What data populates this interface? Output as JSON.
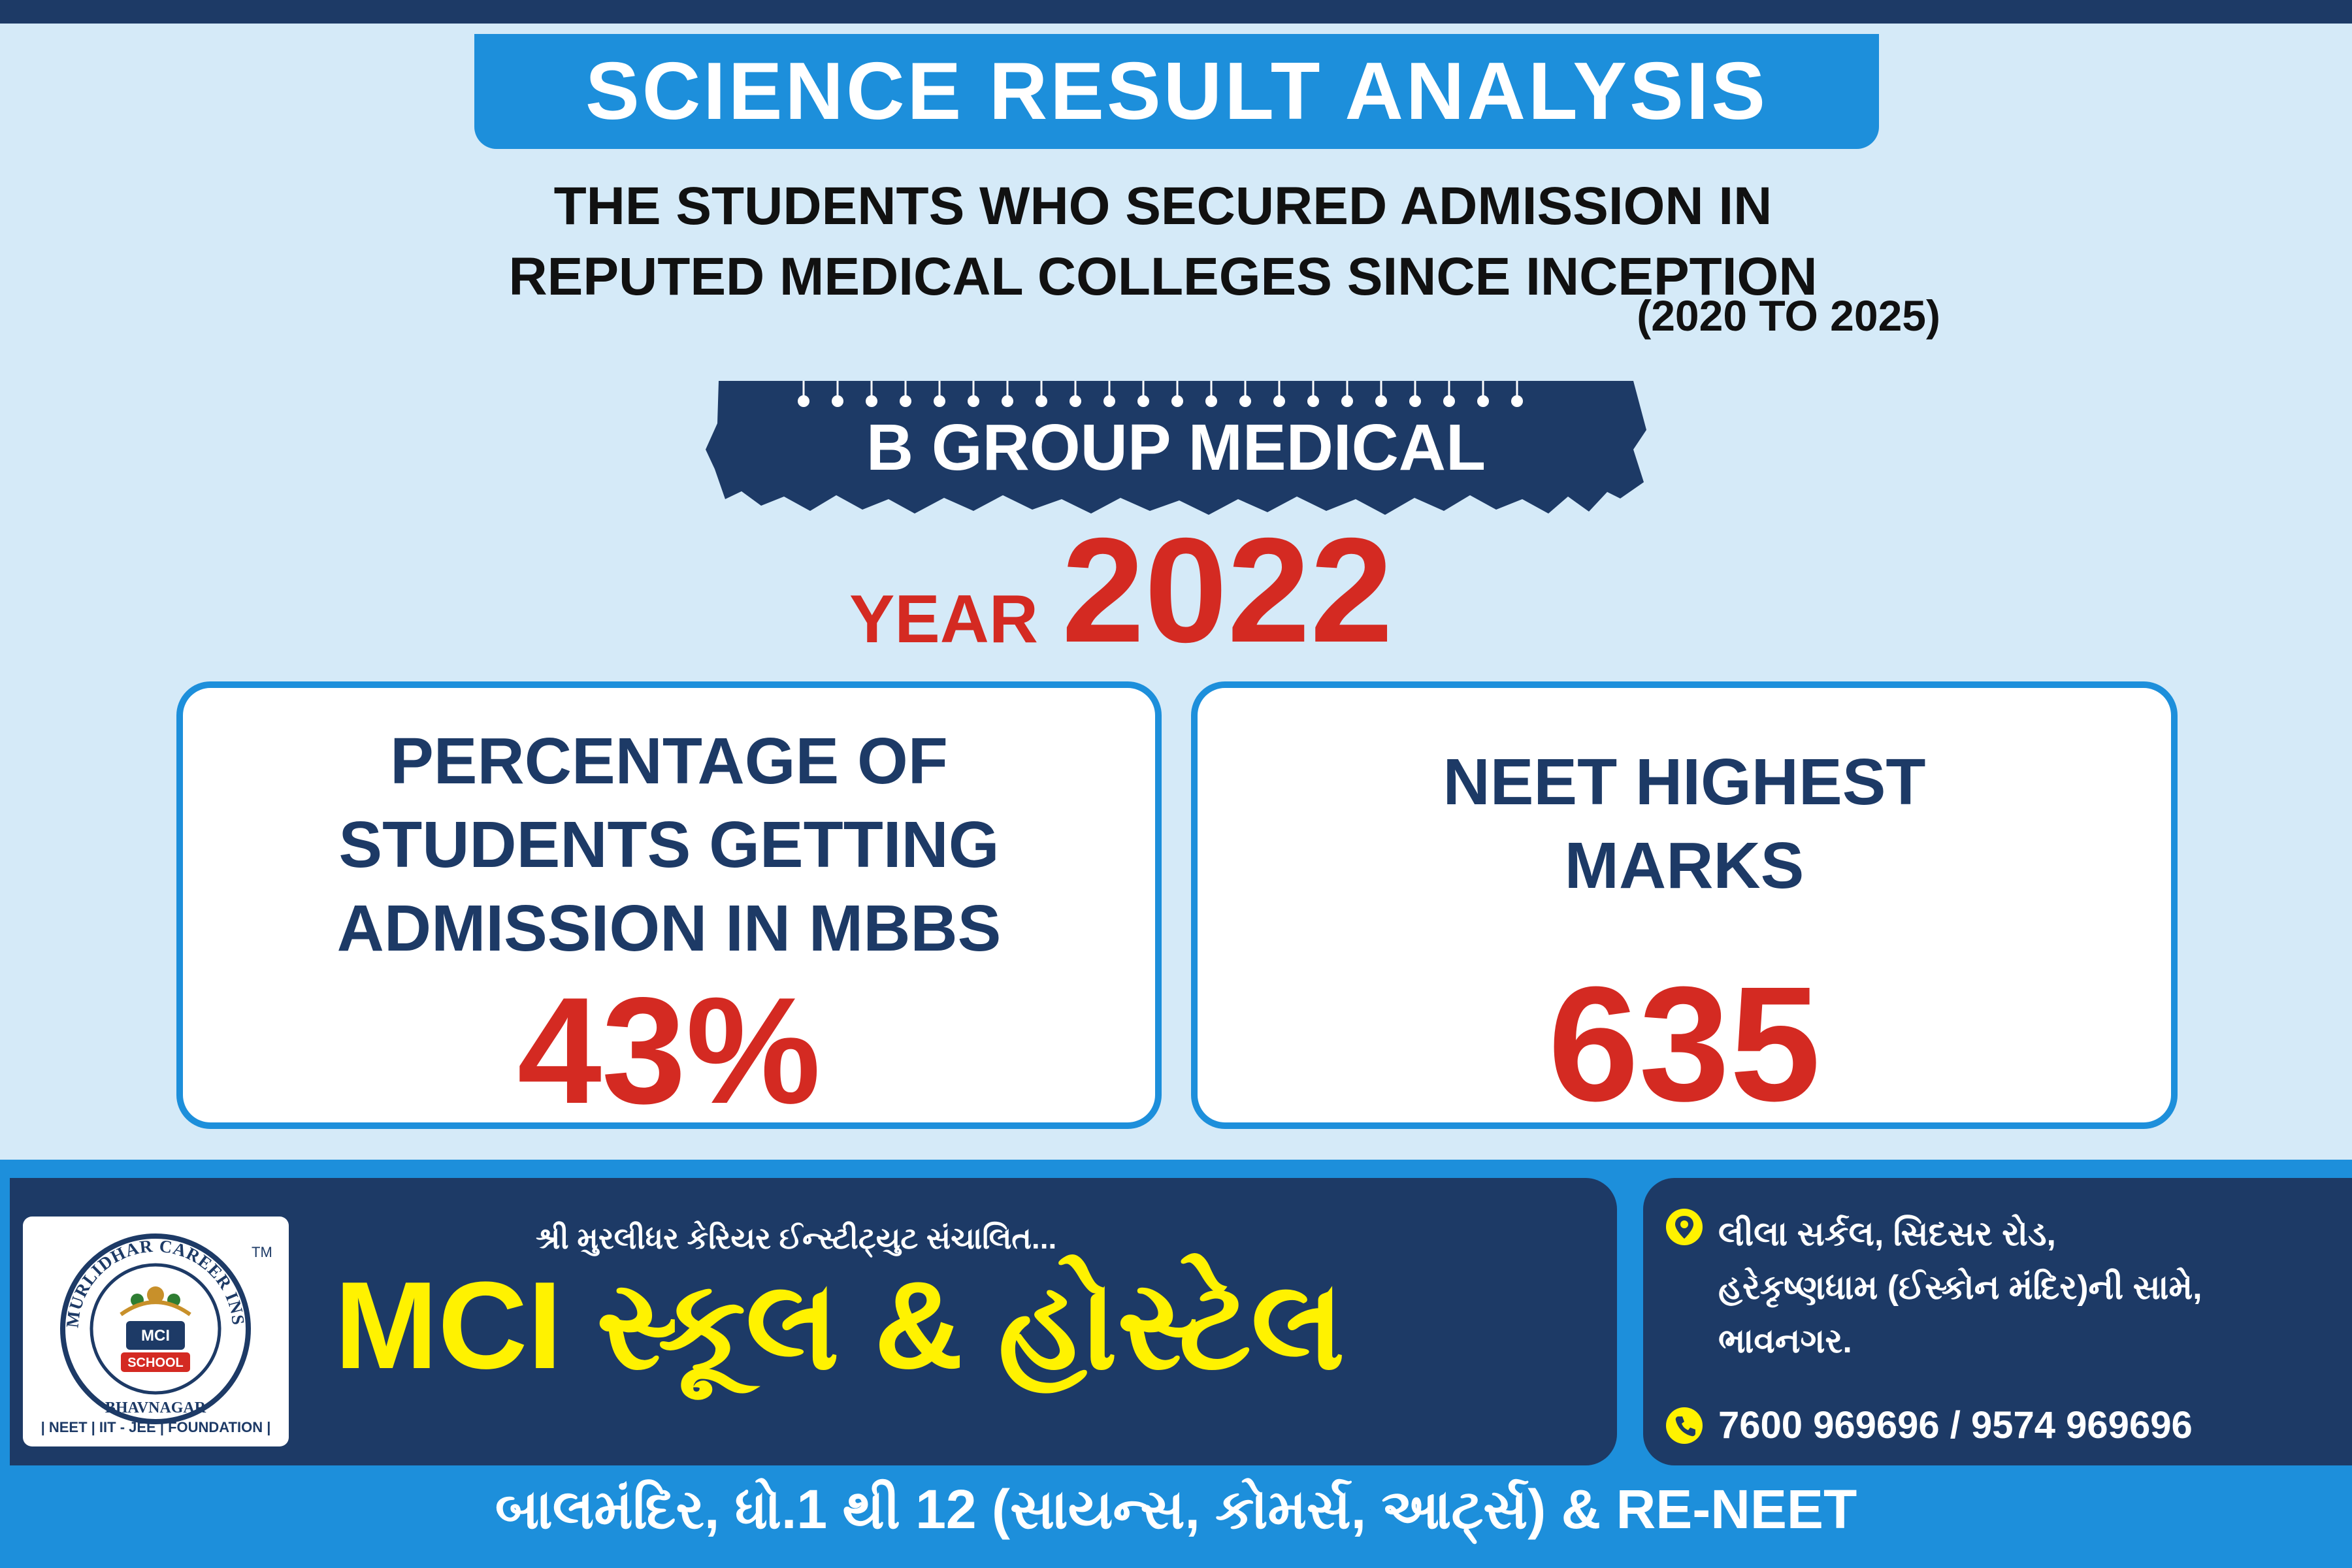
{
  "header": {
    "title": "SCIENCE RESULT ANALYSIS",
    "subtitle_line1": "THE STUDENTS WHO SECURED ADMISSION IN",
    "subtitle_line2": "REPUTED MEDICAL COLLEGES SINCE INCEPTION",
    "years": "(2020 TO 2025)"
  },
  "group": {
    "label": "B GROUP MEDICAL"
  },
  "year": {
    "word": "YEAR",
    "value": "2022"
  },
  "cards": [
    {
      "label": "PERCENTAGE OF\nSTUDENTS GETTING\nADMISSION IN MBBS",
      "value": "43%"
    },
    {
      "label": "NEET HIGHEST\nMARKS",
      "value": "635"
    }
  ],
  "footer": {
    "logo_ring_text": "SHREE MURLIDHAR CAREER INSTITUTE",
    "logo_city": "BHAVNAGAR",
    "logo_center_top": "MCI",
    "logo_center_bottom": "SCHOOL",
    "logo_tm": "TM",
    "logo_tagline": "| NEET | IIT - JEE | FOUNDATION |",
    "sub_brand": "શ્રી મુરલીધર કેરિયર ઈન્સ્ટીટ્યુટ સંચાલિત...",
    "brand": "MCI સ્કૂલ & હોસ્ટેલ",
    "address": "લીલા સર્કલ, સિદસર રોડ,\nહરેકૃષ્ણધામ (ઈસ્કોન મંદિર)ની સામે,\nભાવનગર.",
    "phone": "7600 969696 / 9574 969696",
    "bottom_line": "બાલમંદિર, ધો.1 થી 12 (સાયન્સ, કોમર્સ, આર્ટ્સ) & RE-NEET"
  },
  "colors": {
    "background": "#d5eaf8",
    "navy": "#1d3a66",
    "blue": "#1d8fdb",
    "red": "#d42a22",
    "yellow": "#fff200"
  },
  "icons": {
    "address": "location-pin-icon",
    "phone": "phone-icon"
  }
}
